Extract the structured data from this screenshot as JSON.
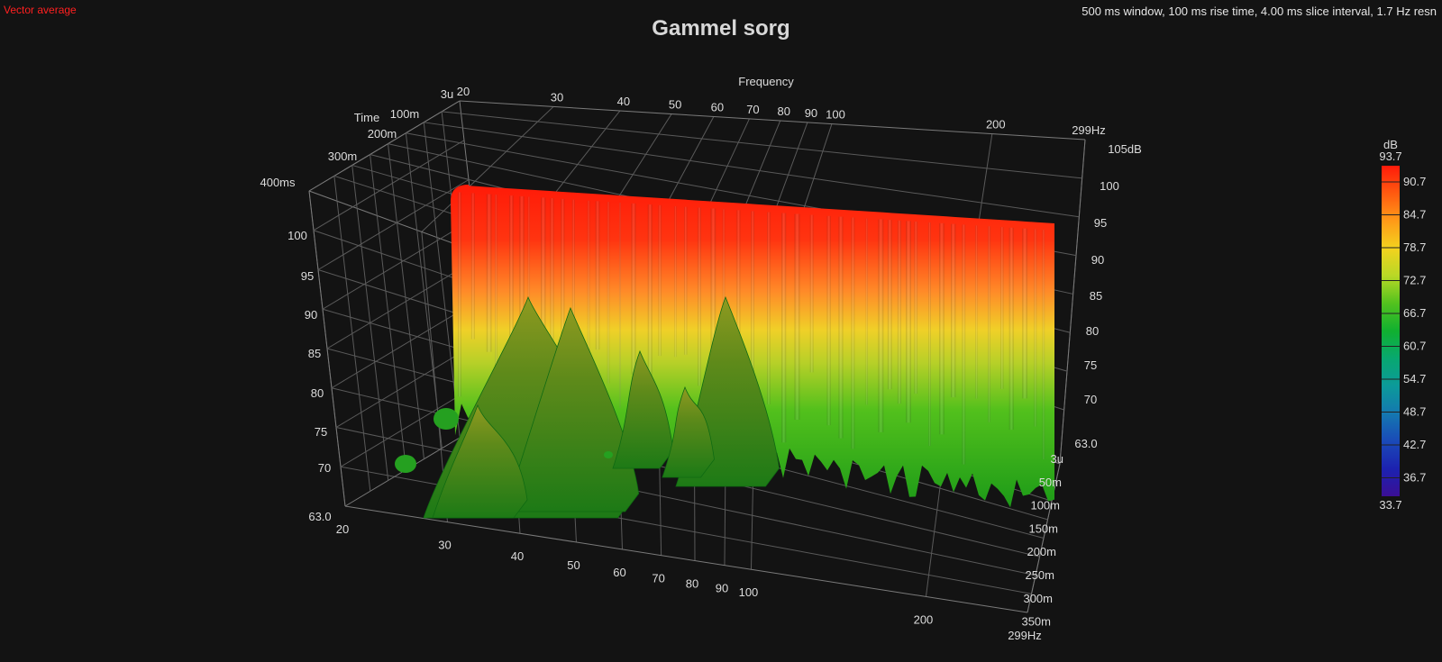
{
  "header": {
    "left_label": "Vector average",
    "right_info": "500 ms window, 100 ms rise time, 4.00 ms slice interval, 1.7 Hz resn"
  },
  "chart_data": {
    "type": "waterfall-3d",
    "title": "Gammel sorg",
    "x_axis": {
      "label": "Frequency",
      "scale": "log",
      "range_hz": [
        20,
        299
      ],
      "ticks_back": [
        "20",
        "30",
        "40",
        "50",
        "60",
        "70",
        "80",
        "90",
        "100",
        "200",
        "299Hz"
      ],
      "ticks_front": [
        "20",
        "30",
        "40",
        "50",
        "60",
        "70",
        "80",
        "90",
        "100",
        "200",
        "299Hz"
      ]
    },
    "z_axis": {
      "label": "Time",
      "range_ms": [
        0.003,
        400
      ],
      "ticks_left": [
        "3u",
        "100m",
        "200m",
        "300m",
        "400ms"
      ],
      "ticks_right": [
        "3u",
        "50m",
        "100m",
        "150m",
        "200m",
        "250m",
        "300m",
        "350m"
      ]
    },
    "y_axis": {
      "unit": "dB",
      "range_db": [
        63.0,
        105
      ],
      "ticks_left": [
        "63.0",
        "70",
        "75",
        "80",
        "85",
        "90",
        "95",
        "100"
      ],
      "ticks_right": [
        "63.0",
        "70",
        "75",
        "80",
        "85",
        "90",
        "95",
        "100",
        "105dB"
      ]
    },
    "colorbar": {
      "unit": "dB",
      "max": "93.7",
      "min": "33.7",
      "ticks": [
        "90.7",
        "84.7",
        "78.7",
        "72.7",
        "66.7",
        "60.7",
        "54.7",
        "48.7",
        "42.7",
        "36.7"
      ],
      "colors": [
        "#ff1a0a",
        "#ff5a10",
        "#ff9a18",
        "#f3d21e",
        "#b8d826",
        "#52c21e",
        "#10b030",
        "#08a870",
        "#0c9a9a",
        "#1478b0",
        "#1a4ab8",
        "#1c22b0",
        "#3a0f95"
      ]
    },
    "surface": {
      "description_free": true,
      "front_slice_db_at_t0": 93.5,
      "late_resonance_peaks_hz": [
        28,
        33,
        40,
        56,
        63,
        70,
        100
      ],
      "late_resonance_peak_db": [
        75,
        81,
        82,
        76,
        74,
        73,
        79
      ],
      "colors": {
        "hot": "#ff2010",
        "warm": "#ff8a20",
        "mid": "#e6de22",
        "cool": "#2eb81a",
        "deep": "#128a1a"
      }
    }
  }
}
